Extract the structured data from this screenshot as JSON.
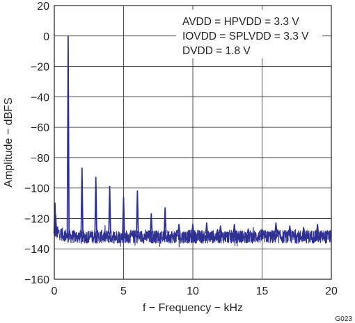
{
  "chart_data": {
    "type": "line",
    "xlabel": "f − Frequency − kHz",
    "ylabel": "Amplitude − dBFS",
    "xlim": [
      0,
      20
    ],
    "ylim": [
      -160,
      20
    ],
    "xticks": [
      0,
      5,
      10,
      15,
      20
    ],
    "yticks": [
      20,
      0,
      -20,
      -40,
      -60,
      -80,
      -100,
      -120,
      -140,
      -160
    ],
    "xtick_labels": [
      "0",
      "5",
      "10",
      "15",
      "20"
    ],
    "ytick_labels": [
      "20",
      "0",
      "−20",
      "−40",
      "−60",
      "−80",
      "−100",
      "−120",
      "−140",
      "−160"
    ],
    "grid": true,
    "annotations": [
      "AVDD = HPVDD = 3.3 V",
      "IOVDD = SPLVDD = 3.3 V",
      "DVDD = 1.8 V"
    ],
    "figure_id": "G023",
    "line_color": "#2e3192",
    "noise_floor_db": -132,
    "low_freq_peaks": [
      {
        "x": 0.05,
        "y": -110
      },
      {
        "x": 0.1,
        "y": -118
      }
    ],
    "harmonics": [
      {
        "x": 1,
        "y": 0
      },
      {
        "x": 2,
        "y": -87
      },
      {
        "x": 3,
        "y": -93
      },
      {
        "x": 4,
        "y": -99
      },
      {
        "x": 5,
        "y": -106
      },
      {
        "x": 6,
        "y": -102
      },
      {
        "x": 7,
        "y": -117
      },
      {
        "x": 8,
        "y": -113
      },
      {
        "x": 9,
        "y": -124
      },
      {
        "x": 10,
        "y": -124
      },
      {
        "x": 11,
        "y": -123
      },
      {
        "x": 12,
        "y": -125
      },
      {
        "x": 13,
        "y": -124
      },
      {
        "x": 14,
        "y": -127
      },
      {
        "x": 15,
        "y": -127
      },
      {
        "x": 16,
        "y": -123
      },
      {
        "x": 17,
        "y": -125
      },
      {
        "x": 18,
        "y": -126
      },
      {
        "x": 19,
        "y": -124
      }
    ]
  }
}
